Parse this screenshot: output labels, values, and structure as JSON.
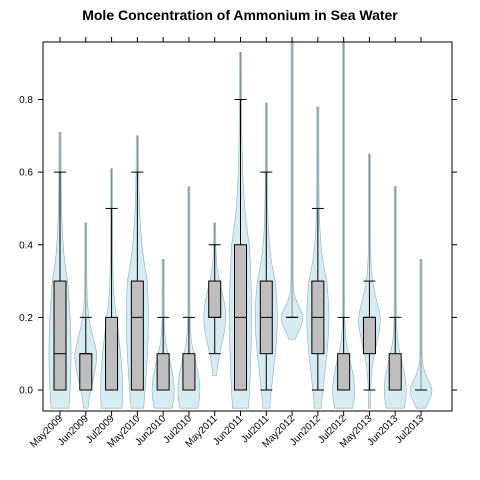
{
  "chart_data": {
    "type": "boxplot-violin",
    "title": "Mole Concentration of Ammonium in Sea Water",
    "xlabel": "",
    "ylabel": "",
    "ylim": [
      -0.06,
      0.96
    ],
    "y_ticks": [
      0.0,
      0.2,
      0.4,
      0.6,
      0.8
    ],
    "y_tick_labels": [
      "0.0",
      "0.2",
      "0.4",
      "0.6",
      "0.8"
    ],
    "grid": false,
    "colors": {
      "box": "#bebebe",
      "violin": "#d6ecf2",
      "line": "#000000"
    },
    "categories": [
      "May2009",
      "Jun2009",
      "Jul2009",
      "May2010",
      "Jun2010",
      "Jul2010",
      "May2011",
      "Jun2011",
      "Jul2011",
      "May2012",
      "Jun2012",
      "Jul2012",
      "May2013",
      "Jun2013",
      "Jul2013"
    ],
    "boxes": [
      {
        "label": "May2009",
        "whisker_low": 0.0,
        "q1": 0.0,
        "median": 0.1,
        "q3": 0.3,
        "whisker_high": 0.6,
        "max": 0.71
      },
      {
        "label": "Jun2009",
        "whisker_low": 0.0,
        "q1": 0.0,
        "median": 0.1,
        "q3": 0.1,
        "whisker_high": 0.2,
        "max": 0.46
      },
      {
        "label": "Jul2009",
        "whisker_low": 0.0,
        "q1": 0.0,
        "median": 0.0,
        "q3": 0.2,
        "whisker_high": 0.5,
        "max": 0.61
      },
      {
        "label": "May2010",
        "whisker_low": 0.0,
        "q1": 0.0,
        "median": 0.2,
        "q3": 0.3,
        "whisker_high": 0.6,
        "max": 0.7
      },
      {
        "label": "Jun2010",
        "whisker_low": 0.0,
        "q1": 0.0,
        "median": 0.0,
        "q3": 0.1,
        "whisker_high": 0.2,
        "max": 0.36
      },
      {
        "label": "Jul2010",
        "whisker_low": 0.0,
        "q1": 0.0,
        "median": 0.0,
        "q3": 0.1,
        "whisker_high": 0.2,
        "max": 0.56
      },
      {
        "label": "May2011",
        "whisker_low": 0.1,
        "q1": 0.2,
        "median": 0.2,
        "q3": 0.3,
        "whisker_high": 0.4,
        "max": 0.46
      },
      {
        "label": "Jun2011",
        "whisker_low": 0.0,
        "q1": 0.0,
        "median": 0.2,
        "q3": 0.4,
        "whisker_high": 0.8,
        "max": 0.93
      },
      {
        "label": "Jul2011",
        "whisker_low": 0.0,
        "q1": 0.1,
        "median": 0.2,
        "q3": 0.3,
        "whisker_high": 0.6,
        "max": 0.79
      },
      {
        "label": "May2012",
        "whisker_low": 0.2,
        "q1": 0.2,
        "median": 0.2,
        "q3": 0.2,
        "whisker_high": 0.2,
        "max": 0.96
      },
      {
        "label": "Jun2012",
        "whisker_low": 0.0,
        "q1": 0.1,
        "median": 0.2,
        "q3": 0.3,
        "whisker_high": 0.5,
        "max": 0.78
      },
      {
        "label": "Jul2012",
        "whisker_low": 0.0,
        "q1": 0.0,
        "median": 0.0,
        "q3": 0.1,
        "whisker_high": 0.2,
        "max": 0.96
      },
      {
        "label": "May2013",
        "whisker_low": 0.0,
        "q1": 0.1,
        "median": 0.2,
        "q3": 0.2,
        "whisker_high": 0.3,
        "max": 0.65
      },
      {
        "label": "Jun2013",
        "whisker_low": 0.0,
        "q1": 0.0,
        "median": 0.0,
        "q3": 0.1,
        "whisker_high": 0.2,
        "max": 0.56
      },
      {
        "label": "Jul2013",
        "whisker_low": 0.0,
        "q1": 0.0,
        "median": 0.0,
        "q3": 0.0,
        "whisker_high": 0.0,
        "max": 0.36
      }
    ]
  }
}
